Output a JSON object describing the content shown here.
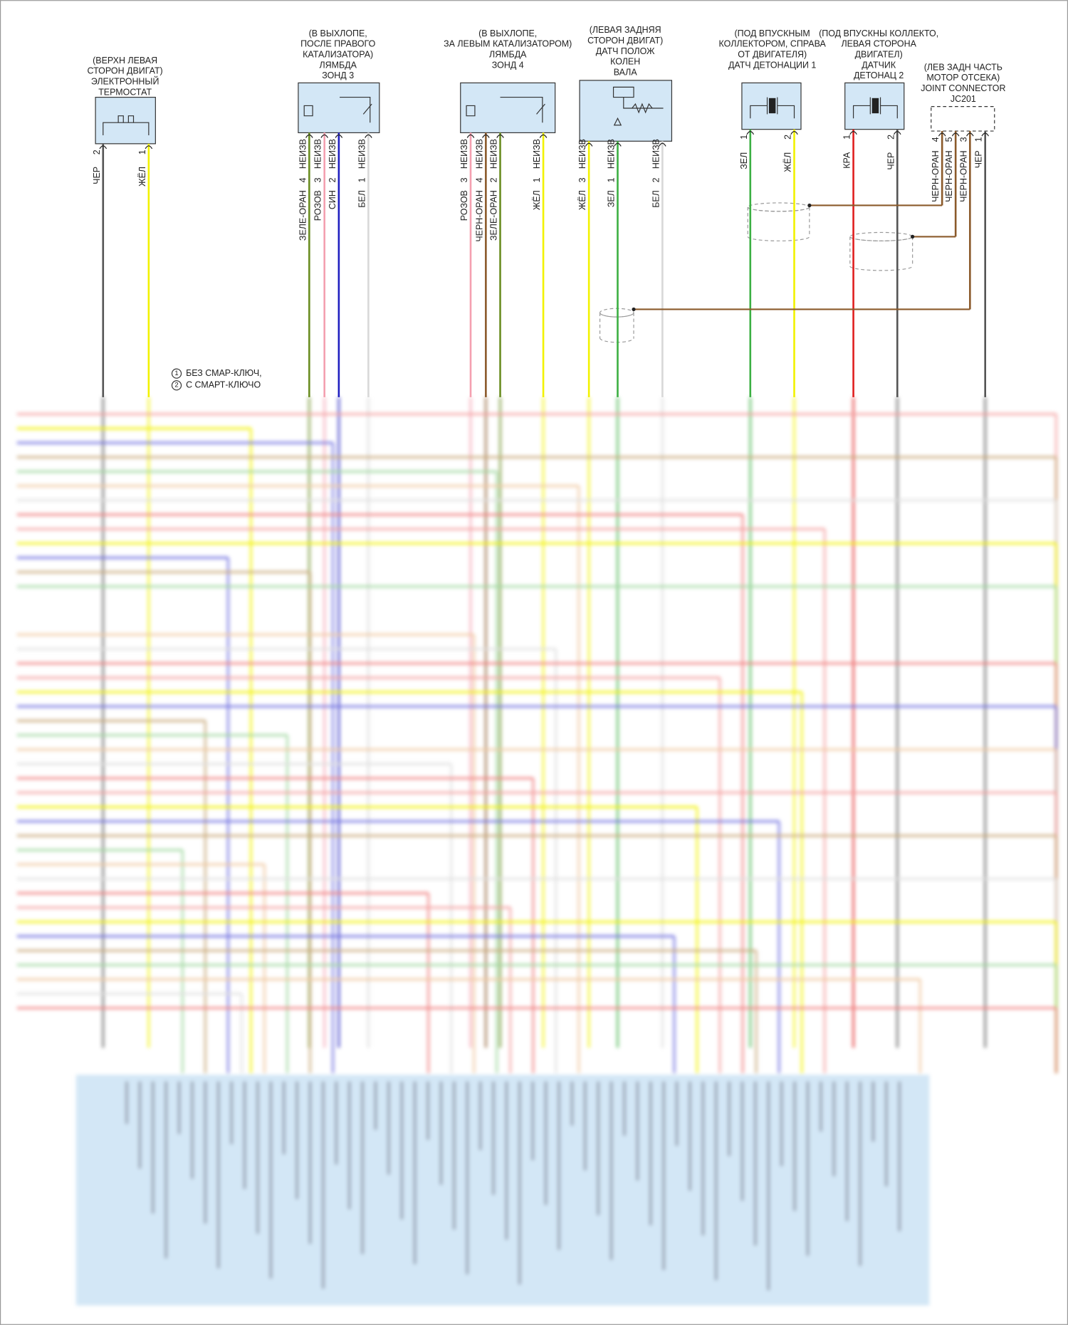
{
  "components": [
    {
      "label": [
        "(ВЕРХН ЛЕВАЯ",
        "СТОРОН ДВИГАТ)",
        "ЭЛЕКТРОННЫЙ",
        "ТЕРМОСТАТ"
      ],
      "pins": [
        {
          "number": "2",
          "wire": "ЧЕР",
          "color": "#555555"
        },
        {
          "number": "1",
          "wire": "ЖЁЛ",
          "color": "#f2f200"
        }
      ]
    },
    {
      "label": [
        "(В ВЫХЛОПЕ,",
        "ПОСЛЕ ПРАВОГО",
        "КАТАЛИЗАТОРА)",
        "ЛЯМБДА",
        "ЗОНД 3"
      ],
      "pins": [
        {
          "number": "4",
          "wire": "ЗЕЛЕ-ОРАН",
          "note": "НЕИЗВ",
          "color": "#6b8e23"
        },
        {
          "number": "3",
          "wire": "РОЗОВ",
          "note": "НЕИЗВ",
          "color": "#f4a0b0"
        },
        {
          "number": "2",
          "wire": "СИН",
          "note": "НЕИЗВ",
          "color": "#2020c0"
        },
        {
          "number": "1",
          "wire": "БЕЛ",
          "note": "НЕИЗВ",
          "color": "#d8d8d8"
        }
      ]
    },
    {
      "label": [
        "(В ВЫХЛОПЕ,",
        "ЗА ЛЕВЫМ КАТАЛИЗАТОРОМ)",
        "ЛЯМБДА",
        "ЗОНД 4"
      ],
      "pins": [
        {
          "number": "3",
          "wire": "РОЗОВ",
          "note": "НЕИЗВ",
          "color": "#f4a0b0"
        },
        {
          "number": "4",
          "wire": "ЧЕРН-ОРАН",
          "note": "НЕИЗВ",
          "color": "#8b5a2b"
        },
        {
          "number": "2",
          "wire": "ЗЕЛЕ-ОРАН",
          "note": "НЕИЗВ",
          "color": "#6b8e23"
        },
        {
          "number": "1",
          "wire": "ЖЁЛ",
          "note": "НЕИЗВ",
          "color": "#f2f200"
        }
      ]
    },
    {
      "label": [
        "(ЛЕВАЯ ЗАДНЯЯ",
        "СТОРОН ДВИГАТ)",
        "ДАТЧ ПОЛОЖ",
        "КОЛЕН",
        "ВАЛА"
      ],
      "pins": [
        {
          "number": "3",
          "wire": "ЖЁЛ",
          "note": "НЕИЗВ",
          "color": "#f2f200"
        },
        {
          "number": "1",
          "wire": "ЗЕЛ",
          "note": "НЕИЗВ",
          "color": "#3cb043"
        },
        {
          "number": "2",
          "wire": "БЕЛ",
          "note": "НЕИЗВ",
          "color": "#d8d8d8"
        }
      ]
    },
    {
      "label": [
        "(ПОД ВПУСКНЫМ",
        "КОЛЛЕКТОРОМ, СПРАВА",
        "ОТ ДВИГАТЕЛЯ)",
        "ДАТЧ ДЕТОНАЦИИ 1"
      ],
      "pins": [
        {
          "number": "1",
          "wire": "ЗЕЛ",
          "color": "#3cb043"
        },
        {
          "number": "2",
          "wire": "ЖЁЛ",
          "color": "#f2f200"
        }
      ]
    },
    {
      "label": [
        "(ПОД ВПУСКНЫ КОЛЛЕКТО,",
        "ЛЕВАЯ СТОРОНА",
        "ДВИГАТЕЛ)",
        "ДАТЧИК",
        "ДЕТОНАЦ 2"
      ],
      "pins": [
        {
          "number": "1",
          "wire": "КРА",
          "color": "#e02020"
        },
        {
          "number": "2",
          "wire": "ЧЕР",
          "color": "#555555"
        }
      ]
    },
    {
      "label": [
        "(ЛЕВ ЗАДН ЧАСТЬ",
        "МОТОР ОТСЕКА)",
        "JOINT CONNECTOR",
        "JC201"
      ],
      "pins": [
        {
          "number": "4",
          "wire": "ЧЕРН-ОРАН",
          "color": "#8b5a2b"
        },
        {
          "number": "5",
          "wire": "ЧЕРН-ОРАН",
          "color": "#8b5a2b"
        },
        {
          "number": "3",
          "wire": "ЧЕРН-ОРАН",
          "color": "#8b5a2b"
        },
        {
          "number": "1",
          "wire": "ЧЕР",
          "color": "#555555"
        }
      ]
    }
  ],
  "notes": [
    {
      "marker": "1",
      "text": "БЕЗ СМАР-КЛЮЧ,"
    },
    {
      "marker": "2",
      "text": "С СМАРТ-КЛЮЧО"
    }
  ]
}
